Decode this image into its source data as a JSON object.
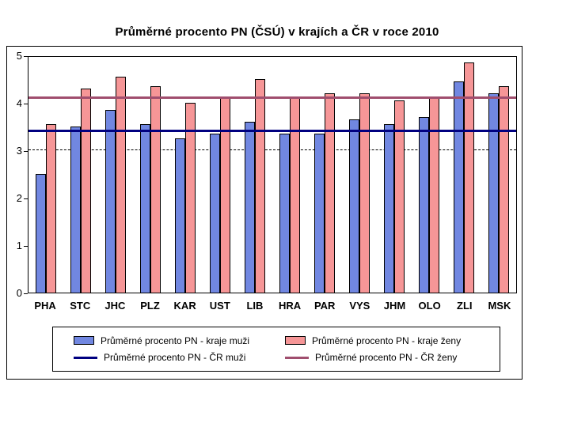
{
  "chart_data": {
    "type": "bar",
    "title": "Průměrné procento PN (ČSÚ) v krajích a ČR v roce 2010",
    "categories": [
      "PHA",
      "STC",
      "JHC",
      "PLZ",
      "KAR",
      "UST",
      "LIB",
      "HRA",
      "PAR",
      "VYS",
      "JHM",
      "OLO",
      "ZLI",
      "MSK"
    ],
    "series": [
      {
        "name": "Průměrné procento PN - kraje muži",
        "color": "#7187E1",
        "values": [
          2.5,
          3.5,
          3.85,
          3.55,
          3.25,
          3.35,
          3.6,
          3.35,
          3.35,
          3.65,
          3.55,
          3.7,
          4.45,
          4.2
        ]
      },
      {
        "name": "Průměrné procento PN - kraje ženy",
        "color": "#F69697",
        "values": [
          3.55,
          4.3,
          4.55,
          4.35,
          4.0,
          4.1,
          4.5,
          4.1,
          4.2,
          4.2,
          4.05,
          4.1,
          4.85,
          4.35
        ]
      }
    ],
    "ref_lines": [
      {
        "name": "Průměrné procento PN - ČR muži",
        "color": "#000080",
        "value": 3.4
      },
      {
        "name": "Průměrné procento PN - ČR ženy",
        "color": "#A04E6E",
        "value": 4.1
      }
    ],
    "ylim": [
      0,
      5
    ],
    "yticks": [
      0,
      1,
      2,
      3,
      4,
      5
    ],
    "grid_dashed_at": 3,
    "grid": "dashed line at y=3 only",
    "legend_position": "bottom",
    "xlabel": "",
    "ylabel": ""
  }
}
